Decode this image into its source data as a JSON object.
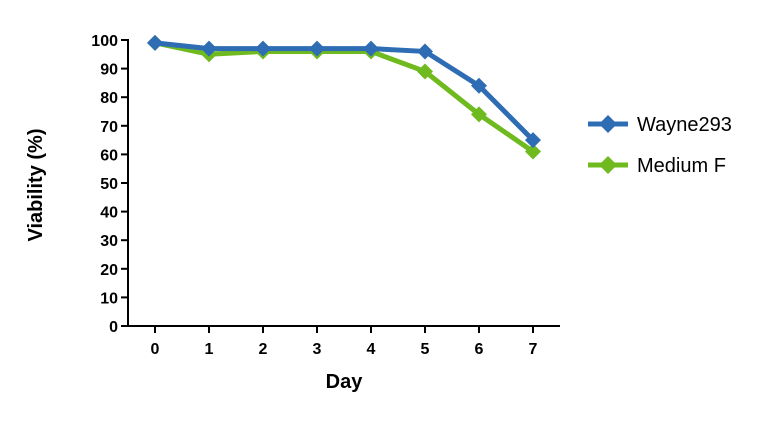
{
  "chart_data": {
    "type": "line",
    "xlabel": "Day",
    "ylabel": "Viability (%)",
    "x": [
      0,
      1,
      2,
      3,
      4,
      5,
      6,
      7
    ],
    "xlim": [
      0,
      7
    ],
    "ylim": [
      0,
      100
    ],
    "yticks": [
      0,
      10,
      20,
      30,
      40,
      50,
      60,
      70,
      80,
      90,
      100
    ],
    "grid": false,
    "legend_position": "right",
    "series": [
      {
        "name": "Wayne293",
        "color": "#2e6db4",
        "marker": "diamond",
        "values": [
          99,
          97,
          97,
          97,
          97,
          96,
          84,
          65
        ]
      },
      {
        "name": "Medium F",
        "color": "#6fba1f",
        "marker": "diamond",
        "values": [
          99,
          95,
          96,
          96,
          96,
          89,
          74,
          61
        ]
      }
    ]
  }
}
